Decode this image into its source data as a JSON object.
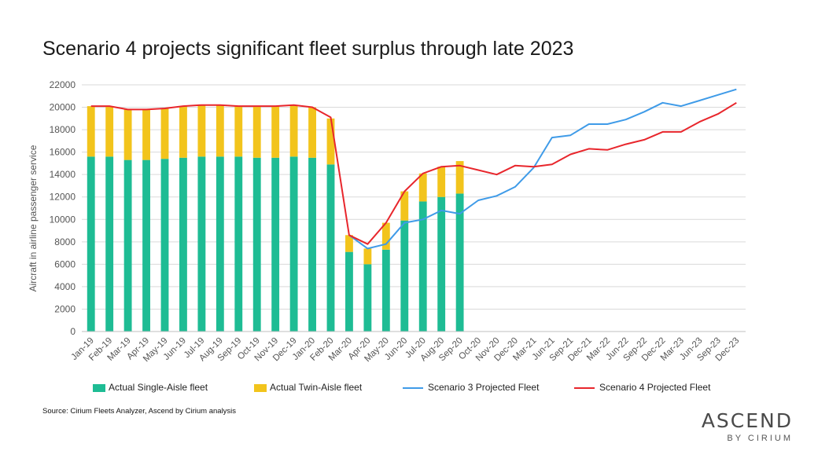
{
  "title": "Scenario 4 projects significant fleet surplus through late 2023",
  "source": "Source: Cirium Fleets Analyzer, Ascend by Cirium analysis",
  "logo": {
    "main": "ASCEND",
    "sub": "BY CIRIUM"
  },
  "legend": {
    "single": "Actual Single-Aisle fleet",
    "twin": "Actual Twin-Aisle fleet",
    "s3": "Scenario 3 Projected Fleet",
    "s4": "Scenario 4 Projected Fleet"
  },
  "colors": {
    "single": "#1ebc94",
    "twin": "#f2c41c",
    "s3": "#3f9be8",
    "s4": "#e8262c",
    "grid": "#d9d9d9",
    "axis_text": "#555555"
  },
  "chart_data": {
    "type": "bar",
    "ylabel": "Aircraft in airline passenger service",
    "ylim": [
      0,
      22000
    ],
    "yticks": [
      "0",
      "2000",
      "4000",
      "6000",
      "8000",
      "10000",
      "12000",
      "14000",
      "16000",
      "18000",
      "20000",
      "22000"
    ],
    "grid": true,
    "legend_position": "bottom",
    "categories": [
      "Jan-19",
      "Feb-19",
      "Mar-19",
      "Apr-19",
      "May-19",
      "Jun-19",
      "Jul-19",
      "Aug-19",
      "Sep-19",
      "Oct-19",
      "Nov-19",
      "Dec-19",
      "Jan-20",
      "Feb-20",
      "Mar-20",
      "Apr-20",
      "May-20",
      "Jun-20",
      "Jul-20",
      "Aug-20",
      "Sep-20",
      "Oct-20",
      "Nov-20",
      "Dec-20",
      "Mar-21",
      "Jun-21",
      "Sep-21",
      "Dec-21",
      "Mar-22",
      "Jun-22",
      "Sep-22",
      "Dec-22",
      "Mar-23",
      "Jun-23",
      "Sep-23",
      "Dec-23"
    ],
    "series": [
      {
        "name": "Actual Single-Aisle fleet",
        "kind": "bar",
        "values": [
          15600,
          15600,
          15300,
          15300,
          15400,
          15500,
          15600,
          15600,
          15600,
          15500,
          15500,
          15600,
          15500,
          14900,
          7100,
          6000,
          7300,
          9900,
          11600,
          12000,
          12300,
          null,
          null,
          null,
          null,
          null,
          null,
          null,
          null,
          null,
          null,
          null,
          null,
          null,
          null,
          null
        ]
      },
      {
        "name": "Actual Twin-Aisle fleet",
        "kind": "bar",
        "values": [
          4500,
          4500,
          4500,
          4500,
          4500,
          4600,
          4600,
          4600,
          4500,
          4600,
          4600,
          4600,
          4500,
          4100,
          1500,
          1400,
          2400,
          2600,
          2500,
          2700,
          2900,
          null,
          null,
          null,
          null,
          null,
          null,
          null,
          null,
          null,
          null,
          null,
          null,
          null,
          null,
          null
        ]
      },
      {
        "name": "Scenario 3 Projected Fleet",
        "kind": "line",
        "values": [
          null,
          null,
          null,
          null,
          null,
          null,
          null,
          null,
          null,
          null,
          null,
          null,
          null,
          null,
          8600,
          7400,
          7800,
          9700,
          10000,
          10800,
          10500,
          11700,
          12100,
          12900,
          14600,
          17300,
          17500,
          18500,
          18500,
          18900,
          19600,
          20400,
          20100,
          20600,
          21100,
          21600
        ]
      },
      {
        "name": "Scenario 4 Projected Fleet",
        "kind": "line",
        "values": [
          20100,
          20100,
          19800,
          19800,
          19900,
          20100,
          20200,
          20200,
          20100,
          20100,
          20100,
          20200,
          20000,
          19100,
          8600,
          7800,
          9700,
          12500,
          14100,
          14700,
          14800,
          14400,
          14000,
          14800,
          14700,
          14900,
          15800,
          16300,
          16200,
          16700,
          17100,
          17800,
          17800,
          18700,
          19400,
          20400
        ]
      }
    ]
  }
}
